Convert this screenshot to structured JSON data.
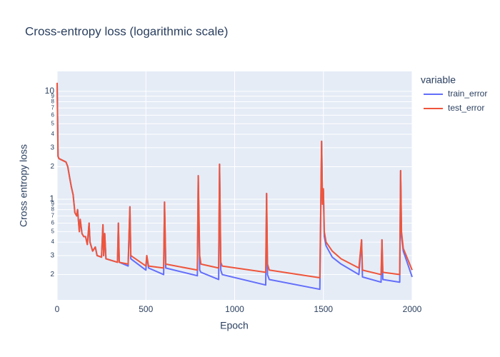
{
  "chart_data": {
    "type": "line",
    "title": "Cross-entropy loss (logarithmic scale)",
    "x_label": "Epoch",
    "y_label": "Cross entropy loss",
    "legend_title": "variable",
    "legend_position": "right",
    "log_y": true,
    "grid": true,
    "xlim": [
      0,
      2000
    ],
    "xticks": [
      0,
      500,
      1000,
      1500,
      2000
    ],
    "ylim": [
      0.1165,
      15.3
    ],
    "yticks": [
      {
        "value": 0.2,
        "label": "2"
      },
      {
        "value": 0.3,
        "label": "3"
      },
      {
        "value": 0.4,
        "label": "4"
      },
      {
        "value": 0.5,
        "label": "5"
      },
      {
        "value": 0.6,
        "label": "6"
      },
      {
        "value": 0.7,
        "label": "7"
      },
      {
        "value": 0.8,
        "label": "8"
      },
      {
        "value": 0.9,
        "label": "9"
      },
      1,
      2,
      3,
      4,
      5,
      6,
      7,
      8,
      9,
      10
    ],
    "x": [
      0,
      5,
      10,
      50,
      60,
      70,
      80,
      90,
      100,
      110,
      115,
      125,
      130,
      140,
      150,
      160,
      170,
      180,
      185,
      200,
      215,
      225,
      250,
      258,
      262,
      268,
      275,
      340,
      345,
      350,
      400,
      410,
      415,
      500,
      505,
      515,
      600,
      605,
      612,
      790,
      795,
      803,
      810,
      910,
      915,
      922,
      930,
      1175,
      1180,
      1185,
      1195,
      1480,
      1490,
      1495,
      1500,
      1505,
      1515,
      1550,
      1600,
      1700,
      1715,
      1720,
      1825,
      1830,
      1835,
      1930,
      1935,
      1940,
      1950,
      2000
    ],
    "series": [
      {
        "name": "train_error",
        "color": "#636efa",
        "values": [
          12,
          2.5,
          2.38,
          2.21,
          2.0,
          1.6,
          1.3,
          1.1,
          0.75,
          0.7,
          0.8,
          0.5,
          0.65,
          0.48,
          0.45,
          0.45,
          0.38,
          0.6,
          0.4,
          0.33,
          0.36,
          0.3,
          0.29,
          0.58,
          0.3,
          0.48,
          0.28,
          0.26,
          0.6,
          0.26,
          0.24,
          0.85,
          0.28,
          0.22,
          0.3,
          0.23,
          0.2,
          0.94,
          0.23,
          0.195,
          1.65,
          0.22,
          0.21,
          0.18,
          2.11,
          0.22,
          0.2,
          0.16,
          1.13,
          0.2,
          0.18,
          0.146,
          3.44,
          0.9,
          1.2,
          0.45,
          0.37,
          0.29,
          0.25,
          0.2,
          0.42,
          0.19,
          0.17,
          0.42,
          0.18,
          0.17,
          1.84,
          0.45,
          0.33,
          0.19
        ]
      },
      {
        "name": "test_error",
        "color": "#ef553b",
        "values": [
          12,
          2.5,
          2.38,
          2.21,
          2.0,
          1.6,
          1.3,
          1.1,
          0.75,
          0.7,
          0.8,
          0.5,
          0.65,
          0.48,
          0.45,
          0.45,
          0.38,
          0.6,
          0.4,
          0.33,
          0.36,
          0.3,
          0.29,
          0.58,
          0.3,
          0.48,
          0.28,
          0.26,
          0.6,
          0.26,
          0.25,
          0.85,
          0.3,
          0.24,
          0.3,
          0.24,
          0.23,
          0.94,
          0.25,
          0.22,
          1.65,
          0.3,
          0.25,
          0.23,
          2.11,
          0.26,
          0.24,
          0.21,
          1.13,
          0.25,
          0.22,
          0.187,
          3.44,
          0.9,
          1.25,
          0.5,
          0.4,
          0.33,
          0.28,
          0.23,
          0.42,
          0.22,
          0.2,
          0.42,
          0.21,
          0.2,
          1.84,
          0.5,
          0.35,
          0.22
        ]
      }
    ]
  }
}
